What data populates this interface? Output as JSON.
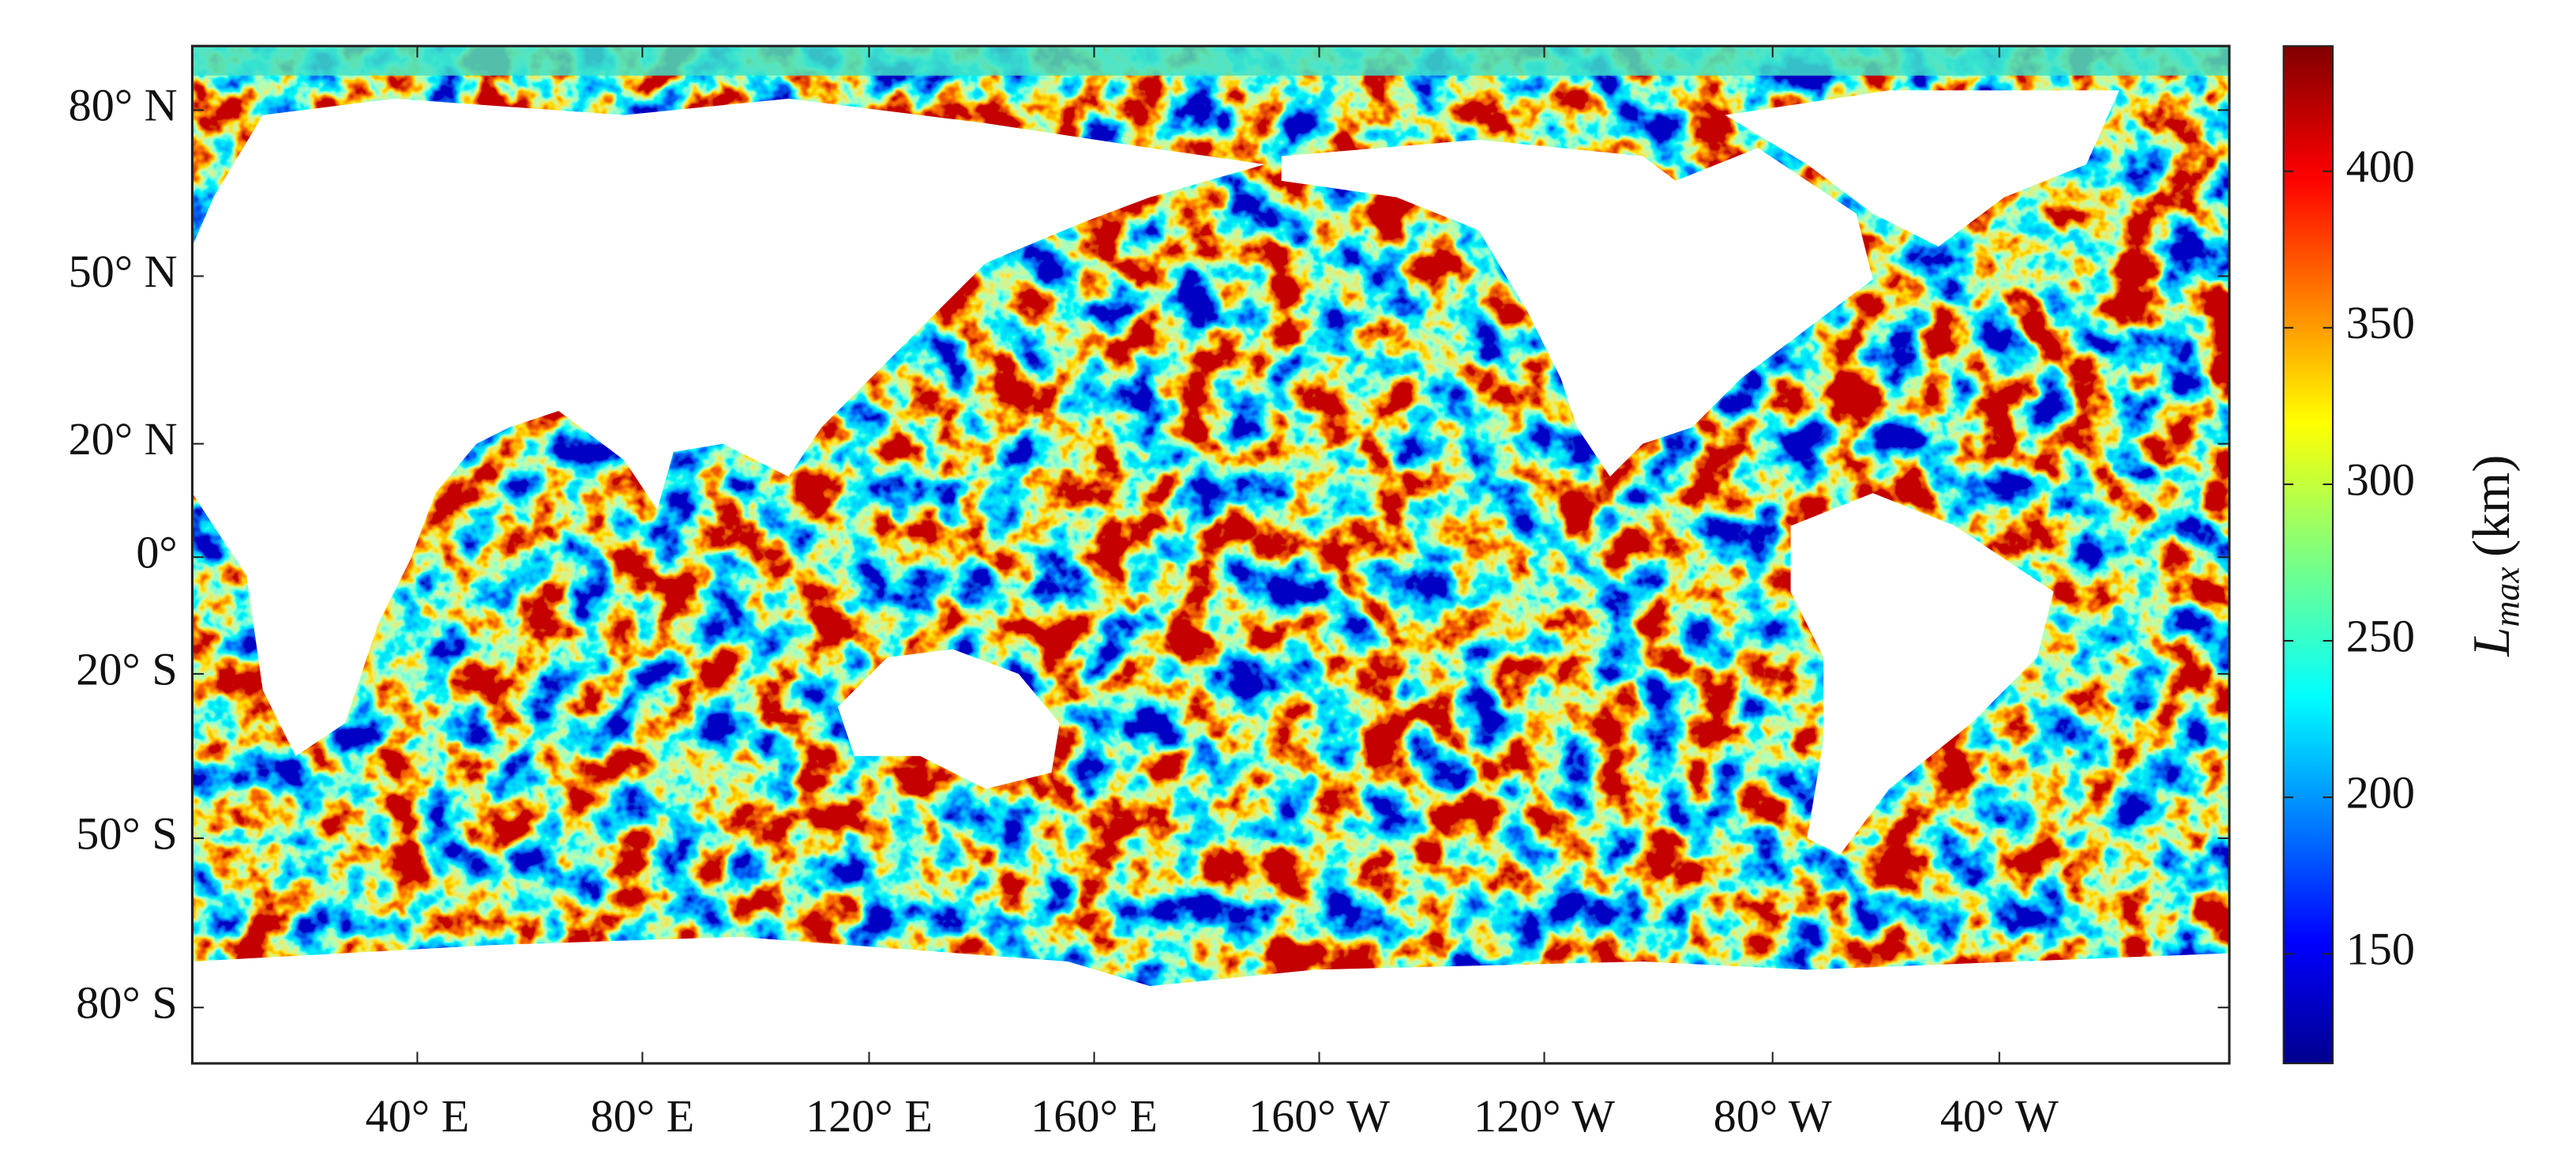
{
  "map": {
    "lat_labels": [
      "80° N",
      "50° N",
      "20° N",
      "0°",
      "20° S",
      "50° S",
      "80° S"
    ],
    "lon_labels": [
      "40° E",
      "80° E",
      "120° E",
      "160° E",
      "160° W",
      "120° W",
      "80° W",
      "40° W"
    ]
  },
  "colorbar": {
    "symbol": "L",
    "subscript": "max",
    "unit": "(km)",
    "clim": [
      115,
      440
    ],
    "ticks": [
      150,
      200,
      250,
      300,
      350,
      400
    ]
  }
}
